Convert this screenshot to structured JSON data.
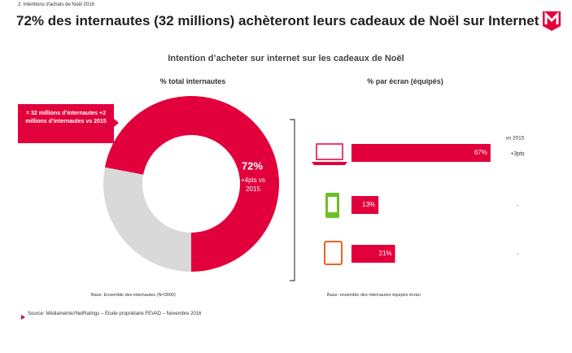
{
  "header": {
    "section": "2. Intentions d'achats de Noël 2016",
    "title": "72% des internautes (32 millions) achèteront leurs cadeaux de Noël sur Internet",
    "subtitle": "Intention d’acheter sur internet sur les cadeaux de Noël"
  },
  "chart_data": [
    {
      "type": "pie",
      "title": "% total internautes",
      "values": [
        72,
        28
      ],
      "value_labels": [
        "72%",
        null
      ],
      "colors": [
        "#e2003c",
        "#d9d9d9"
      ],
      "annotation": "+4pts vs 2015",
      "callout": "= 32 millions d’internautes +2 millions d’internautes vs 2015",
      "base": "Base: Ensemble des internautes (N=3000)"
    },
    {
      "type": "bar",
      "orientation": "horizontal",
      "title": "% par écran (équipés)",
      "categories": [
        null,
        null,
        null
      ],
      "values": [
        67,
        13,
        21
      ],
      "value_labels": [
        "67%",
        "13%",
        "21%"
      ],
      "color": "#e2003c",
      "xlim": [
        0,
        100
      ],
      "change_header": "vs 2015",
      "changes": [
        "+3pts",
        "-",
        "-"
      ],
      "base": "Base: ensemble des internautes équipés écran"
    }
  ],
  "source": "Source: Médiametrie//NetRatings – Etude propriétaire FEVAD – Novembre 2016"
}
